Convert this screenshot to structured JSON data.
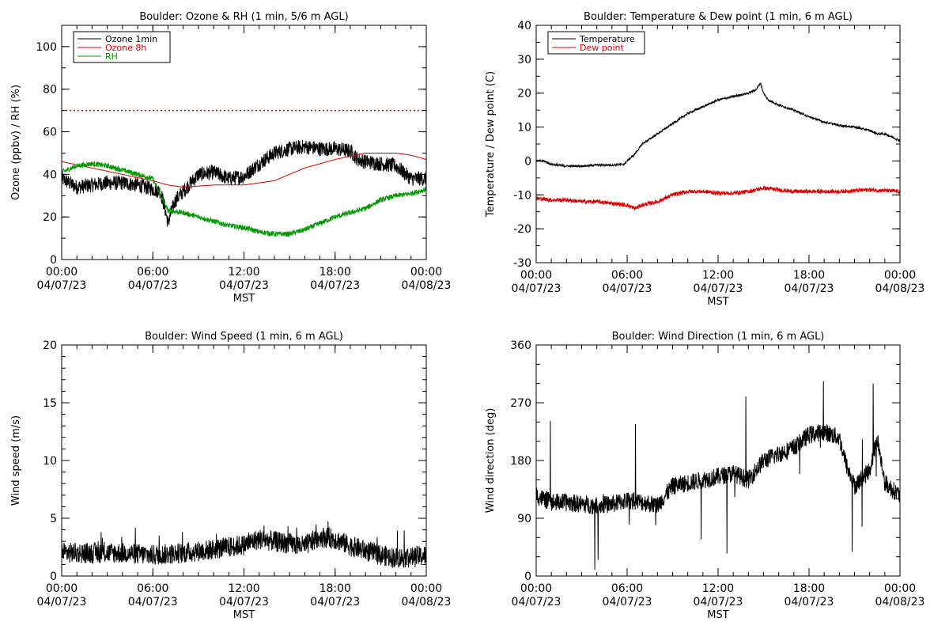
{
  "colors": {
    "axes": "#000000",
    "black": "#000000",
    "red": "#dd0000",
    "green": "#009900"
  },
  "chart_data": [
    {
      "id": "ozone-rh",
      "type": "line",
      "title": "Boulder: Ozone & RH (1 min, 5/6 m AGL)",
      "ylabel": "Ozone (ppbv) / RH (%)",
      "xlabel": "MST",
      "xlim": [
        0,
        24
      ],
      "ylim": [
        0,
        110
      ],
      "ytick_values": [
        0,
        20,
        40,
        60,
        80,
        100
      ],
      "ytick_labels": [
        "0",
        "20",
        "40",
        "60",
        "80",
        "100"
      ],
      "y_minor_step": 10,
      "xtick_values": [
        0,
        6,
        12,
        18,
        24
      ],
      "xtick_labels": [
        "00:00",
        "06:00",
        "12:00",
        "18:00",
        "00:00"
      ],
      "xtick_dates": [
        "04/07/23",
        "04/07/23",
        "04/07/23",
        "04/07/23",
        "04/08/23"
      ],
      "legend": {
        "position": "top-left",
        "entries": [
          {
            "label": "Ozone 1min",
            "color": "#000000"
          },
          {
            "label": "Ozone 8h",
            "color": "#dd0000"
          },
          {
            "label": "RH",
            "color": "#009900"
          }
        ]
      },
      "reference_lines": [
        {
          "y": 70,
          "color": "#dd0000",
          "style": "dotted"
        }
      ],
      "series": [
        {
          "name": "Ozone 1min",
          "color": "#000000",
          "noise": 3.5,
          "x": [
            0,
            0.5,
            1,
            2,
            3,
            4,
            5,
            6,
            6.5,
            6.8,
            7.0,
            7.2,
            7.5,
            8,
            9,
            10,
            11,
            12,
            13,
            14,
            15,
            16,
            17,
            18,
            19,
            19.5,
            20,
            21,
            22,
            23,
            24
          ],
          "y": [
            38,
            36,
            34,
            35,
            36,
            36,
            35,
            33,
            32,
            24,
            17,
            22,
            28,
            32,
            40,
            41,
            38,
            39,
            45,
            50,
            52,
            53,
            52,
            52,
            51,
            47,
            46,
            45,
            44,
            38,
            38
          ]
        },
        {
          "name": "Ozone 8h",
          "color": "#dd0000",
          "noise": 0,
          "x": [
            0,
            2,
            4,
            6,
            7,
            8,
            10,
            12,
            14,
            16,
            18,
            20,
            21,
            22,
            23,
            24
          ],
          "y": [
            46,
            43,
            40,
            37,
            35,
            34,
            35,
            35,
            37,
            43,
            47,
            50,
            50,
            50,
            49,
            47
          ]
        },
        {
          "name": "RH",
          "color": "#009900",
          "noise": 1.2,
          "x": [
            0,
            1,
            2,
            3,
            4,
            5,
            6,
            6.5,
            7,
            8,
            9,
            10,
            11,
            12,
            13,
            14,
            15,
            16,
            17,
            18,
            19,
            20,
            21,
            22,
            23,
            24
          ],
          "y": [
            41,
            44,
            45,
            44,
            42,
            40,
            38,
            30,
            23,
            22,
            20,
            18,
            16,
            15,
            13,
            12,
            12,
            14,
            17,
            20,
            22,
            24,
            28,
            30,
            31,
            33
          ]
        }
      ]
    },
    {
      "id": "temp-dew",
      "type": "line",
      "title": "Boulder: Temperature & Dew point (1 min, 6 m AGL)",
      "ylabel": "Temperature / Dew point (C)",
      "xlabel": "MST",
      "xlim": [
        0,
        24
      ],
      "ylim": [
        -30,
        40
      ],
      "ytick_values": [
        -30,
        -20,
        -10,
        0,
        10,
        20,
        30,
        40
      ],
      "ytick_labels": [
        "-30",
        "-20",
        "-10",
        "0",
        "10",
        "20",
        "30",
        "40"
      ],
      "y_minor_step": 5,
      "xtick_values": [
        0,
        6,
        12,
        18,
        24
      ],
      "xtick_labels": [
        "00:00",
        "06:00",
        "12:00",
        "18:00",
        "00:00"
      ],
      "xtick_dates": [
        "04/07/23",
        "04/07/23",
        "04/07/23",
        "04/07/23",
        "04/08/23"
      ],
      "legend": {
        "position": "top-left",
        "entries": [
          {
            "label": "Temperature",
            "color": "#000000"
          },
          {
            "label": "Dew point",
            "color": "#dd0000"
          }
        ]
      },
      "reference_lines": [],
      "series": [
        {
          "name": "Temperature",
          "color": "#000000",
          "noise": 0.3,
          "x": [
            0,
            0.5,
            1,
            2,
            3,
            4,
            5,
            5.8,
            6,
            6.5,
            7,
            8,
            9,
            10,
            11,
            12,
            13,
            14,
            14.5,
            14.8,
            15,
            15.3,
            16,
            17,
            18,
            19,
            20,
            21,
            22,
            22.5,
            23,
            24
          ],
          "y": [
            0,
            0,
            -1,
            -1.5,
            -1.5,
            -1.2,
            -1.2,
            -1,
            0,
            2,
            5,
            8,
            11,
            14,
            16,
            18,
            19,
            20,
            21,
            23,
            20,
            18,
            16.5,
            15,
            13,
            11.5,
            10.5,
            10,
            9,
            8,
            8,
            6
          ]
        },
        {
          "name": "Dew point",
          "color": "#dd0000",
          "noise": 0.6,
          "x": [
            0,
            1,
            2,
            3,
            4,
            5,
            6,
            6.5,
            7,
            8,
            9,
            10,
            11,
            12,
            13,
            14,
            15,
            16,
            17,
            18,
            20,
            22,
            24
          ],
          "y": [
            -11,
            -11.5,
            -11.5,
            -12,
            -12,
            -12.5,
            -13,
            -14,
            -13,
            -12,
            -10,
            -9,
            -9,
            -9.5,
            -9.5,
            -9,
            -8,
            -8.5,
            -9,
            -9,
            -9,
            -8.5,
            -9
          ]
        }
      ]
    },
    {
      "id": "wind-speed",
      "type": "line",
      "title": "Boulder: Wind Speed (1 min, 6 m AGL)",
      "ylabel": "Wind speed (m/s)",
      "xlabel": "MST",
      "xlim": [
        0,
        24
      ],
      "ylim": [
        0,
        20
      ],
      "ytick_values": [
        0,
        5,
        10,
        15,
        20
      ],
      "ytick_labels": [
        "0",
        "5",
        "10",
        "15",
        "20"
      ],
      "y_minor_step": 1,
      "xtick_values": [
        0,
        6,
        12,
        18,
        24
      ],
      "xtick_labels": [
        "00:00",
        "06:00",
        "12:00",
        "18:00",
        "00:00"
      ],
      "xtick_dates": [
        "04/07/23",
        "04/07/23",
        "04/07/23",
        "04/07/23",
        "04/08/23"
      ],
      "legend": null,
      "reference_lines": [],
      "series": [
        {
          "name": "",
          "color": "#000000",
          "noise": 0.9,
          "x": [
            0,
            2,
            4,
            6,
            8,
            10,
            12,
            13,
            14,
            15,
            16,
            17,
            18,
            19,
            20,
            21,
            22,
            23,
            24
          ],
          "y": [
            2,
            2,
            2,
            1.8,
            2,
            2.3,
            2.7,
            3.2,
            3.0,
            2.8,
            2.6,
            3.4,
            3.2,
            2.6,
            2.2,
            1.8,
            1.6,
            1.6,
            1.8
          ]
        }
      ]
    },
    {
      "id": "wind-dir",
      "type": "line",
      "title": "Boulder: Wind Direction (1 min, 6 m AGL)",
      "ylabel": "Wind direction (deg)",
      "xlabel": "MST",
      "xlim": [
        0,
        24
      ],
      "ylim": [
        0,
        360
      ],
      "ytick_values": [
        0,
        90,
        180,
        270,
        360
      ],
      "ytick_labels": [
        "0",
        "90",
        "180",
        "270",
        "360"
      ],
      "y_minor_step": 30,
      "xtick_values": [
        0,
        6,
        12,
        18,
        24
      ],
      "xtick_labels": [
        "00:00",
        "06:00",
        "12:00",
        "18:00",
        "00:00"
      ],
      "xtick_dates": [
        "04/07/23",
        "04/07/23",
        "04/07/23",
        "04/07/23",
        "04/08/23"
      ],
      "legend": null,
      "reference_lines": [],
      "series": [
        {
          "name": "",
          "color": "#000000",
          "noise": 14,
          "x": [
            0,
            1,
            2,
            3,
            4,
            5,
            6,
            7,
            8,
            9,
            10,
            11,
            12,
            13,
            14,
            15,
            16,
            17,
            18,
            19,
            20,
            20.5,
            21,
            22,
            22.5,
            23,
            24
          ],
          "y": [
            125,
            115,
            115,
            112,
            110,
            112,
            118,
            115,
            110,
            140,
            145,
            150,
            155,
            160,
            150,
            180,
            190,
            200,
            220,
            225,
            215,
            170,
            140,
            165,
            215,
            145,
            125
          ]
        }
      ]
    }
  ]
}
